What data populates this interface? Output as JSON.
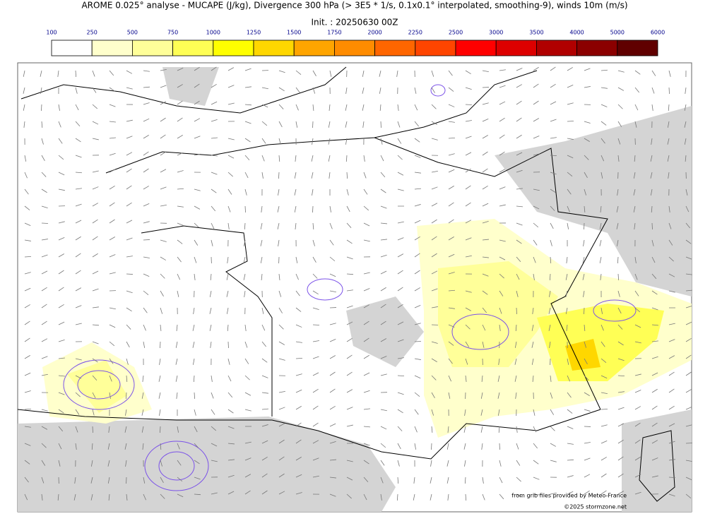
{
  "header": {
    "title": "AROME 0.025° analyse - MUCAPE (J/kg), Divergence 300 hPa (> 3E5 * 1/s, 0.1x0.1° interpolated, smoothing-9), winds 10m (m/s)",
    "init": "Init. : 20250630 00Z"
  },
  "colorbar": {
    "ticks": [
      100,
      250,
      500,
      750,
      1000,
      1250,
      1500,
      1750,
      2000,
      2250,
      2500,
      3000,
      3500,
      4000,
      5000,
      6000
    ],
    "colors": [
      "#ffffff",
      "#ffffcc",
      "#ffff99",
      "#ffff55",
      "#ffff00",
      "#ffd700",
      "#ffa500",
      "#ff8c00",
      "#ff6600",
      "#ff4500",
      "#ff0000",
      "#dd0000",
      "#b00000",
      "#8b0000",
      "#600000"
    ]
  },
  "credits": [
    "from grib files provided by Meteo-France",
    "©2025 stormzone.net"
  ]
}
